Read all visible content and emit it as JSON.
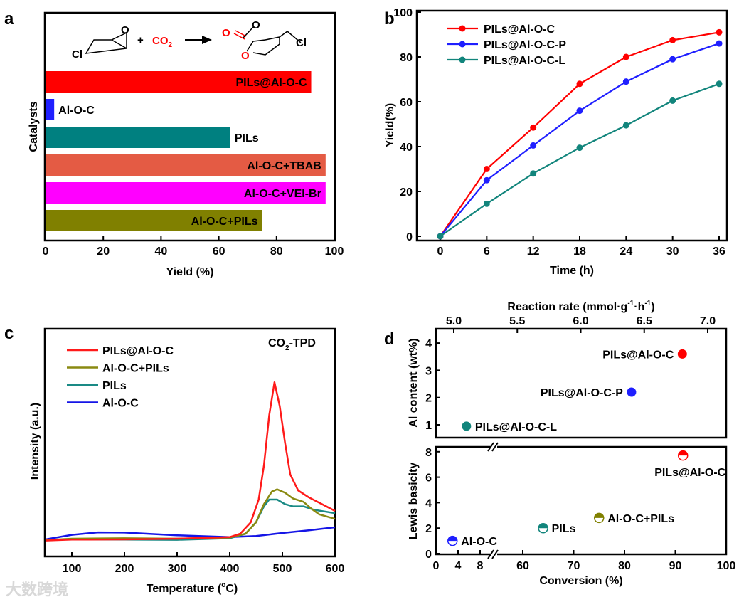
{
  "chart_data": [
    {
      "panel": "a",
      "type": "bar",
      "orientation": "horizontal",
      "xlabel": "Yield (%)",
      "ylabel": "Catalysts",
      "xlim": [
        0,
        100
      ],
      "xticks": [
        0,
        20,
        40,
        60,
        80,
        100
      ],
      "categories": [
        "PILs@Al-O-C",
        "Al-O-C",
        "PILs",
        "Al-O-C+TBAB",
        "Al-O-C+VEI-Br",
        "Al-O-C+PILs"
      ],
      "values": [
        92,
        3,
        64,
        97,
        97,
        75
      ],
      "colors": [
        "#ff0000",
        "#1f1fff",
        "#008080",
        "#e45b44",
        "#ff00ff",
        "#808000"
      ],
      "reaction": {
        "cl1": "Cl",
        "o1": "O",
        "plus": "+",
        "co2": "CO",
        "co2_sub": "2",
        "o_carbonyl": "O",
        "o_ring1": "O",
        "o_ring2": "O",
        "cl2": "Cl"
      }
    },
    {
      "panel": "b",
      "type": "line",
      "xlabel": "Time (h)",
      "ylabel": "Yield(%)",
      "xlim": [
        0,
        36
      ],
      "ylim": [
        0,
        100
      ],
      "xticks": [
        0,
        6,
        12,
        18,
        24,
        30,
        36
      ],
      "yticks": [
        0,
        20,
        40,
        60,
        80,
        100
      ],
      "x": [
        0,
        6,
        12,
        18,
        24,
        30,
        36
      ],
      "legend_position": "top-left",
      "series": [
        {
          "name": "PILs@Al-O-C",
          "color": "#ff0000",
          "values": [
            0,
            30,
            48.5,
            68,
            80,
            87.5,
            91
          ]
        },
        {
          "name": "PILs@Al-O-C-P",
          "color": "#1f1fff",
          "values": [
            0,
            25,
            40.5,
            56,
            69,
            79,
            86
          ]
        },
        {
          "name": "PILs@Al-O-C-L",
          "color": "#12857c",
          "values": [
            0,
            14.5,
            28,
            39.5,
            49.5,
            60.5,
            68
          ]
        }
      ]
    },
    {
      "panel": "c",
      "type": "line",
      "xlabel": "Temperature (",
      "xlabel_deg": "o",
      "xlabel_end": "C)",
      "ylabel": "Intensity (a.u.)",
      "annotation": "CO",
      "annotation_sub": "2",
      "annotation_end": "-TPD",
      "xlim": [
        50,
        600
      ],
      "xticks": [
        100,
        200,
        300,
        400,
        500,
        600
      ],
      "legend_position": "top-left",
      "series": [
        {
          "name": "PILs@Al-O-C",
          "color": "#ff1a1a",
          "points": [
            [
              50,
              7
            ],
            [
              100,
              7.4
            ],
            [
              200,
              7.5
            ],
            [
              300,
              7.8
            ],
            [
              400,
              8.5
            ],
            [
              420,
              10
            ],
            [
              440,
              15
            ],
            [
              455,
              25
            ],
            [
              465,
              40
            ],
            [
              475,
              62
            ],
            [
              485,
              76.5
            ],
            [
              495,
              66
            ],
            [
              505,
              50
            ],
            [
              515,
              36
            ],
            [
              530,
              29
            ],
            [
              550,
              26
            ],
            [
              575,
              23
            ],
            [
              600,
              20
            ]
          ]
        },
        {
          "name": "Al-O-C+PILs",
          "color": "#8a8a12",
          "points": [
            [
              50,
              7.2
            ],
            [
              100,
              7.8
            ],
            [
              200,
              8
            ],
            [
              300,
              7.8
            ],
            [
              400,
              8.3
            ],
            [
              430,
              10
            ],
            [
              450,
              15
            ],
            [
              465,
              23
            ],
            [
              480,
              28.5
            ],
            [
              490,
              29.5
            ],
            [
              505,
              28
            ],
            [
              520,
              25.5
            ],
            [
              540,
              24
            ],
            [
              555,
              21
            ],
            [
              570,
              18.5
            ],
            [
              600,
              16.5
            ]
          ]
        },
        {
          "name": "PILs",
          "color": "#1a8a85",
          "points": [
            [
              50,
              7.2
            ],
            [
              100,
              7.5
            ],
            [
              200,
              7.4
            ],
            [
              300,
              7.3
            ],
            [
              400,
              8
            ],
            [
              430,
              10
            ],
            [
              450,
              15
            ],
            [
              465,
              22
            ],
            [
              475,
              25
            ],
            [
              490,
              25
            ],
            [
              505,
              23
            ],
            [
              520,
              22
            ],
            [
              540,
              22
            ],
            [
              560,
              20.5
            ],
            [
              600,
              19
            ]
          ]
        },
        {
          "name": "Al-O-C",
          "color": "#1515e6",
          "points": [
            [
              50,
              7.5
            ],
            [
              100,
              9.5
            ],
            [
              150,
              10.6
            ],
            [
              200,
              10.5
            ],
            [
              300,
              9.3
            ],
            [
              400,
              8.5
            ],
            [
              450,
              9
            ],
            [
              500,
              10.3
            ],
            [
              550,
              11.5
            ],
            [
              600,
              12.8
            ]
          ]
        }
      ]
    },
    {
      "panel": "d-top",
      "type": "scatter",
      "xlabel": "Reaction rate (mmol·g",
      "xlabel_sup1": "-1",
      "xlabel_mid": "·h",
      "xlabel_sup2": "-1",
      "xlabel_end": ")",
      "ylabel": "Al content (wt%)",
      "xlim": [
        4.86,
        7.15
      ],
      "ylim": [
        0.6,
        4.4
      ],
      "xticks": [
        "5.0",
        "5.5",
        "6.0",
        "6.5",
        "7.0"
      ],
      "yticks": [
        1,
        2,
        3,
        4
      ],
      "points": [
        {
          "name": "PILs@Al-O-C",
          "x": 6.8,
          "y": 3.6,
          "color": "#ff0000"
        },
        {
          "name": "PILs@Al-O-C-P",
          "x": 6.4,
          "y": 2.2,
          "color": "#1f1fff"
        },
        {
          "name": "PILs@Al-O-C-L",
          "x": 5.1,
          "y": 0.95,
          "color": "#12857c"
        }
      ]
    },
    {
      "panel": "d-bottom",
      "type": "scatter",
      "xlabel": "Conversion (%)",
      "ylabel": "Lewis basicity",
      "xlim": [
        0,
        100
      ],
      "axis_break": [
        10,
        57
      ],
      "ylim": [
        0,
        8.5
      ],
      "xticks": [
        0,
        4,
        8,
        60,
        70,
        80,
        90,
        100
      ],
      "yticks": [
        0,
        2,
        4,
        6,
        8
      ],
      "points": [
        {
          "name": "PILs@Al-O-C",
          "x": 91.5,
          "y": 7.7,
          "color": "#ff0000"
        },
        {
          "name": "Al-O-C+PILs",
          "x": 75,
          "y": 2.8,
          "color": "#808000"
        },
        {
          "name": "PILs",
          "x": 64,
          "y": 2.0,
          "color": "#12857c"
        },
        {
          "name": "Al-O-C",
          "x": 3,
          "y": 1.0,
          "color": "#1f1fff"
        }
      ]
    }
  ],
  "panel_labels": [
    "a",
    "b",
    "c",
    "d"
  ],
  "watermark": "大数跨境"
}
